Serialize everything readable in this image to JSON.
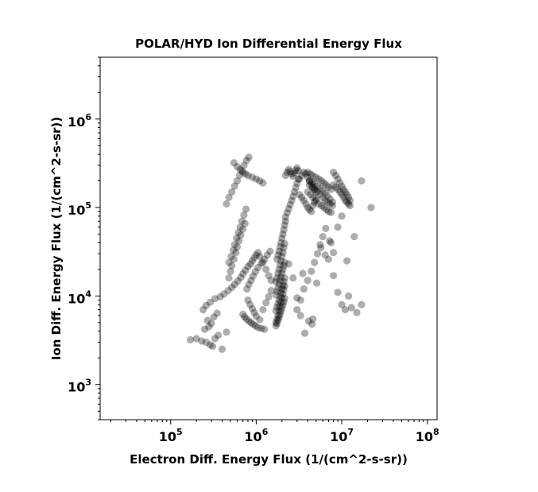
{
  "chart_data": {
    "type": "scatter",
    "title": "POLAR/HYD  Ion Differential Energy Flux",
    "xlabel": "Electron Diff. Energy Flux (1/(cm^2-s-sr))",
    "ylabel": "Ion Diff. Energy Flux (1/(cm^2-s-sr))",
    "xscale": "log",
    "yscale": "log",
    "xlim": [
      15000,
      130000000
    ],
    "ylim": [
      400,
      5000000
    ],
    "x_ticks": [
      {
        "value": 100000,
        "base": "10",
        "exp": "5"
      },
      {
        "value": 1000000,
        "base": "10",
        "exp": "6"
      },
      {
        "value": 10000000,
        "base": "10",
        "exp": "7"
      },
      {
        "value": 100000000,
        "base": "10",
        "exp": "8"
      }
    ],
    "y_ticks": [
      {
        "value": 1000,
        "base": "10",
        "exp": "3"
      },
      {
        "value": 10000,
        "base": "10",
        "exp": "4"
      },
      {
        "value": 100000,
        "base": "10",
        "exp": "5"
      },
      {
        "value": 1000000,
        "base": "10",
        "exp": "6"
      }
    ],
    "grid": false,
    "marker_color": "#000000",
    "marker_alpha": 0.32,
    "series": [
      {
        "x": [
          170000,
          200000,
          230000,
          260000,
          290000,
          310000,
          330000,
          360000,
          400000,
          450000,
          250000,
          280000,
          300000,
          270000,
          320000,
          350000,
          240000,
          260000,
          290000,
          330000,
          380000,
          420000,
          470000,
          520000,
          560000,
          610000,
          660000,
          700000,
          750000,
          800000,
          860000,
          900000,
          950000,
          1000000,
          1050000,
          1100000,
          1200000,
          1300000,
          1400000,
          1500000,
          480000,
          500000,
          520000,
          550000,
          580000,
          600000,
          630000,
          660000,
          700000,
          740000,
          480000,
          510000,
          540000,
          560000,
          590000,
          620000,
          650000,
          680000,
          720000,
          760000,
          800000,
          850000,
          900000,
          950000,
          1000000,
          1100000,
          1200000,
          1300000,
          1400000,
          1500000,
          780000,
          820000,
          870000,
          920000,
          980000,
          1050000,
          1150000,
          1250000,
          1350000,
          1450000,
          450000,
          480000,
          520000,
          560000,
          600000,
          640000,
          680000,
          720000,
          770000,
          820000,
          550000,
          600000,
          650000,
          700000,
          750000,
          800000,
          900000,
          1000000,
          1100000,
          1200000,
          700000,
          730000,
          770000,
          820000,
          870000,
          920000,
          980000,
          1050000,
          1150000,
          1250000,
          1700000,
          1750000,
          1800000,
          1850000,
          1900000,
          1950000,
          2000000,
          2050000,
          2100000,
          2150000,
          1700000,
          1750000,
          1800000,
          1850000,
          1900000,
          1950000,
          2000000,
          2050000,
          2100000,
          2150000,
          1700000,
          1750000,
          1800000,
          1850000,
          1900000,
          1950000,
          2000000,
          2050000,
          2100000,
          2150000,
          1700000,
          1750000,
          1800000,
          1850000,
          1900000,
          1950000,
          2000000,
          2050000,
          2100000,
          2150000,
          1700000,
          1750000,
          1800000,
          1850000,
          1900000,
          1950000,
          2000000,
          2050000,
          2100000,
          2150000,
          1750000,
          1800000,
          1850000,
          1900000,
          1950000,
          2000000,
          2050000,
          2100000,
          2150000,
          2200000,
          2200000,
          2300000,
          2400000,
          2500000,
          2600000,
          2700000,
          2800000,
          2900000,
          3000000,
          3100000,
          2200000,
          2300000,
          2400000,
          2500000,
          2600000,
          2700000,
          2800000,
          2900000,
          3000000,
          3100000,
          3200000,
          3400000,
          3600000,
          3800000,
          4000000,
          4200000,
          4400000,
          4600000,
          4800000,
          5000000,
          3200000,
          3400000,
          3600000,
          3800000,
          4000000,
          4200000,
          4400000,
          4600000,
          4800000,
          5000000,
          4000000,
          4300000,
          4600000,
          5000000,
          5400000,
          5800000,
          6200000,
          6600000,
          7000000,
          7500000,
          4000000,
          4300000,
          4600000,
          5000000,
          5400000,
          5800000,
          6200000,
          6600000,
          7000000,
          7500000,
          4200000,
          4500000,
          4800000,
          5200000,
          5600000,
          6000000,
          6400000,
          6800000,
          7300000,
          7800000,
          4200000,
          4500000,
          4800000,
          5200000,
          5600000,
          6000000,
          6400000,
          6800000,
          7300000,
          7800000,
          8000000,
          8500000,
          9000000,
          9500000,
          10000000,
          10500000,
          11000000,
          11500000,
          12000000,
          12500000,
          8000000,
          8500000,
          9000000,
          9500000,
          10000000,
          10500000,
          11000000,
          11500000,
          12000000,
          12500000,
          3000000,
          3300000,
          3600000,
          4000000,
          4400000,
          4800000,
          5200000,
          5600000,
          6000000,
          6500000,
          7000000,
          7500000,
          8000000,
          9000000,
          10000000,
          11000000,
          12000000,
          14000000,
          17000000,
          22000000,
          2400000,
          2700000,
          3000000,
          3300000,
          3700000,
          4100000,
          4600000,
          5100000,
          5700000,
          6400000,
          7200000,
          8000000,
          9000000,
          10000000,
          11500000,
          13000000,
          15000000,
          17000000,
          3500000,
          4500000
        ],
        "y": [
          3200,
          3300,
          3100,
          3000,
          2800,
          2700,
          3300,
          3600,
          2500,
          3900,
          4200,
          4500,
          4900,
          5300,
          5800,
          6400,
          7000,
          7800,
          8500,
          9300,
          9800,
          10500,
          11500,
          12500,
          13500,
          14800,
          16200,
          17800,
          19500,
          21500,
          23000,
          25000,
          27000,
          29000,
          31000,
          28000,
          24000,
          20000,
          17000,
          15000,
          16000,
          19000,
          22000,
          26000,
          31000,
          36000,
          42000,
          49000,
          57000,
          66000,
          24000,
          28000,
          33000,
          38000,
          45000,
          52000,
          60000,
          70000,
          82000,
          96000,
          9000,
          8000,
          7200,
          6500,
          5900,
          5400,
          7000,
          8400,
          9800,
          11500,
          12000,
          13500,
          15000,
          16800,
          18800,
          21000,
          23500,
          26000,
          29000,
          32000,
          110000,
          130000,
          150000,
          175000,
          200000,
          230000,
          260000,
          300000,
          340000,
          370000,
          320000,
          290000,
          270000,
          250000,
          240000,
          230000,
          220000,
          210000,
          200000,
          190000,
          6200,
          5800,
          5500,
          5200,
          5000,
          4800,
          4600,
          4400,
          4300,
          4200,
          5000,
          5500,
          6000,
          6800,
          7600,
          8500,
          9500,
          10500,
          11800,
          13000,
          14500,
          16000,
          18000,
          20000,
          22500,
          25000,
          28000,
          31000,
          35000,
          39000,
          4600,
          4900,
          5300,
          5700,
          6200,
          6700,
          7300,
          7900,
          8600,
          9400,
          10300,
          11300,
          12400,
          13600,
          15000,
          16500,
          18100,
          20000,
          22000,
          24000,
          6800,
          7500,
          8200,
          9000,
          9900,
          10900,
          12000,
          13200,
          14500,
          16000,
          26000,
          29000,
          32000,
          36000,
          40000,
          45000,
          50000,
          56000,
          63000,
          70000,
          78000,
          87000,
          97000,
          108000,
          120000,
          134000,
          150000,
          168000,
          188000,
          210000,
          230000,
          250000,
          270000,
          255000,
          240000,
          225000,
          245000,
          265000,
          280000,
          260000,
          210000,
          230000,
          250000,
          240000,
          220000,
          200000,
          185000,
          170000,
          160000,
          150000,
          140000,
          130000,
          120000,
          110000,
          100000,
          95000,
          90000,
          105000,
          115000,
          125000,
          250000,
          240000,
          230000,
          220000,
          210000,
          200000,
          190000,
          180000,
          170000,
          160000,
          150000,
          140000,
          130000,
          120000,
          110000,
          105000,
          100000,
          95000,
          90000,
          88000,
          180000,
          170000,
          160000,
          150000,
          140000,
          130000,
          120000,
          115000,
          110000,
          105000,
          200000,
          195000,
          185000,
          175000,
          165000,
          155000,
          145000,
          135000,
          125000,
          115000,
          180000,
          170000,
          160000,
          150000,
          140000,
          130000,
          120000,
          115000,
          110000,
          105000,
          250000,
          230000,
          210000,
          190000,
          175000,
          160000,
          150000,
          140000,
          130000,
          120000,
          7000,
          9000,
          12000,
          15000,
          19000,
          24000,
          30000,
          38000,
          47000,
          58000,
          26000,
          40000,
          17000,
          11000,
          8000,
          7000,
          10000,
          47000,
          200000,
          100000,
          23000,
          16000,
          9500,
          6000,
          3800,
          5200,
          5500,
          14000,
          35000,
          29000,
          42000,
          31000,
          60000,
          80000,
          25000,
          7400,
          6500,
          8000,
          18000,
          4800
        ]
      }
    ]
  }
}
